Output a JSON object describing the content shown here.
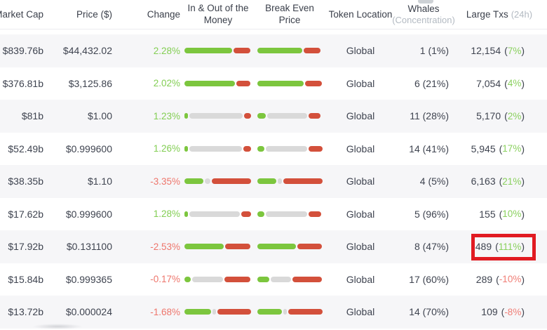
{
  "header": {
    "market_cap": "Market Cap",
    "price": "Price ($)",
    "change": "Change",
    "in_out": "In & Out of the Money",
    "break_even": "Break Even Price",
    "token_location": "Token Location",
    "whales": "Whales",
    "whales_sub": "(Concentration)",
    "large_txs": "Large Txs",
    "large_txs_sub": "(24h)"
  },
  "punct": {
    "open": "(",
    "close": ")"
  },
  "colors": {
    "bar_green": "#7cc63e",
    "bar_gray": "#d9d9d9",
    "bar_red": "#d3503b",
    "change_up": "#83ce54",
    "change_down": "#ee766c",
    "pct_up": "#8ad05e",
    "pct_down": "#f07e76",
    "highlight": "#e11b22"
  },
  "rows": [
    {
      "market_cap": "$839.76b",
      "price": "$44,432.02",
      "change": "2.28%",
      "change_dir": "up",
      "in_out": [
        72,
        0,
        25
      ],
      "break_even": [
        69,
        0,
        26
      ],
      "token_location": "Global",
      "whales": "1 (1%)",
      "large_txs": "12,154",
      "large_txs_pct": "7%",
      "large_txs_dir": "up"
    },
    {
      "market_cap": "$376.81b",
      "price": "$3,125.86",
      "change": "2.02%",
      "change_dir": "up",
      "in_out": [
        76,
        0,
        21
      ],
      "break_even": [
        71,
        0,
        26
      ],
      "token_location": "Global",
      "whales": "6 (21%)",
      "large_txs": "7,054",
      "large_txs_pct": "4%",
      "large_txs_dir": "up"
    },
    {
      "market_cap": "$81b",
      "price": "$1.00",
      "change": "1.23%",
      "change_dir": "up",
      "in_out": [
        5,
        82,
        11
      ],
      "break_even": [
        13,
        61,
        19
      ],
      "token_location": "Global",
      "whales": "11 (28%)",
      "large_txs": "5,170",
      "large_txs_pct": "2%",
      "large_txs_dir": "up"
    },
    {
      "market_cap": "$52.49b",
      "price": "$0.999600",
      "change": "1.26%",
      "change_dir": "up",
      "in_out": [
        5,
        81,
        12
      ],
      "break_even": [
        11,
        63,
        22
      ],
      "token_location": "Global",
      "whales": "14 (41%)",
      "large_txs": "5,945",
      "large_txs_pct": "17%",
      "large_txs_dir": "up"
    },
    {
      "market_cap": "$38.35b",
      "price": "$1.10",
      "change": "-3.35%",
      "change_dir": "down",
      "in_out": [
        29,
        8,
        59
      ],
      "break_even": [
        29,
        7,
        60
      ],
      "token_location": "Global",
      "whales": "4 (5%)",
      "large_txs": "6,163",
      "large_txs_pct": "21%",
      "large_txs_dir": "up"
    },
    {
      "market_cap": "$17.62b",
      "price": "$0.999600",
      "change": "1.28%",
      "change_dir": "up",
      "in_out": [
        5,
        76,
        15
      ],
      "break_even": [
        11,
        63,
        20
      ],
      "token_location": "Global",
      "whales": "5 (96%)",
      "large_txs": "155",
      "large_txs_pct": "10%",
      "large_txs_dir": "up"
    },
    {
      "market_cap": "$17.92b",
      "price": "$0.131100",
      "change": "-2.53%",
      "change_dir": "down",
      "in_out": [
        59,
        0,
        38
      ],
      "break_even": [
        59,
        0,
        38
      ],
      "token_location": "Global",
      "whales": "8 (47%)",
      "large_txs": "489",
      "large_txs_pct": "111%",
      "large_txs_dir": "up",
      "highlighted": true
    },
    {
      "market_cap": "$15.84b",
      "price": "$0.999365",
      "change": "-0.17%",
      "change_dir": "down",
      "in_out": [
        9,
        47,
        39
      ],
      "break_even": [
        18,
        31,
        46
      ],
      "token_location": "Global",
      "whales": "17 (60%)",
      "large_txs": "289",
      "large_txs_pct": "-10%",
      "large_txs_dir": "down"
    },
    {
      "market_cap": "$13.72b",
      "price": "$0.000024",
      "change": "-1.68%",
      "change_dir": "down",
      "in_out": [
        41,
        5,
        51
      ],
      "break_even": [
        38,
        5,
        53
      ],
      "token_location": "Global",
      "whales": "14 (70%)",
      "large_txs": "109",
      "large_txs_pct": "-8%",
      "large_txs_dir": "down"
    }
  ],
  "highlight_annotation": {
    "row_index": 6,
    "column": "Large Txs (24h)",
    "value": "489 (111%)"
  }
}
